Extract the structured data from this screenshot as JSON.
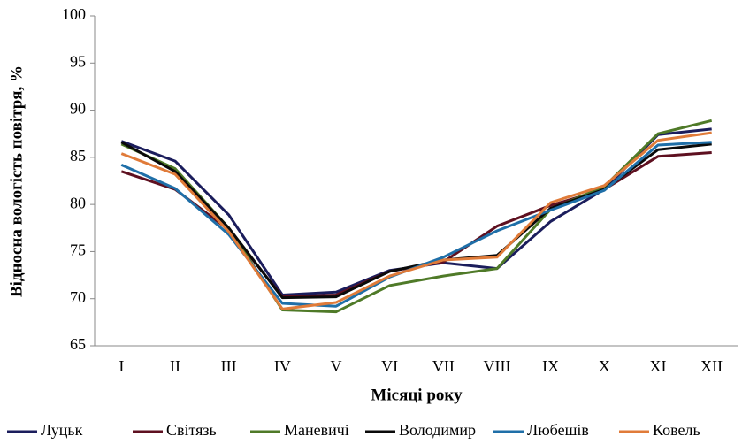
{
  "chart_data": {
    "type": "line",
    "x_label": "Місяці року",
    "y_label": "Відносна вологість повітря, %",
    "categories": [
      "I",
      "II",
      "III",
      "IV",
      "V",
      "VI",
      "VII",
      "VIII",
      "IX",
      "X",
      "XI",
      "XII"
    ],
    "series": [
      {
        "name": "Луцьк",
        "color": "#1b1d5c",
        "values": [
          86.7,
          84.6,
          78.9,
          70.4,
          70.7,
          73.0,
          73.8,
          73.2,
          78.2,
          81.6,
          87.4,
          88.0
        ]
      },
      {
        "name": "Світязь",
        "color": "#5e1020",
        "values": [
          83.5,
          81.6,
          77.3,
          70.2,
          70.4,
          72.9,
          73.9,
          77.7,
          79.9,
          81.6,
          85.1,
          85.5
        ]
      },
      {
        "name": "Маневичі",
        "color": "#4f7a28",
        "values": [
          86.4,
          83.8,
          77.5,
          68.8,
          68.6,
          71.4,
          72.4,
          73.2,
          79.5,
          81.9,
          87.5,
          88.9
        ]
      },
      {
        "name": "Володимир",
        "color": "#0a0a0a",
        "values": [
          86.6,
          83.5,
          77.5,
          70.1,
          70.2,
          72.9,
          74.1,
          74.6,
          79.6,
          81.6,
          85.8,
          86.4
        ]
      },
      {
        "name": "Любешів",
        "color": "#1f6fa8",
        "values": [
          84.2,
          81.7,
          76.8,
          69.5,
          69.2,
          72.3,
          74.4,
          77.2,
          79.4,
          81.5,
          86.3,
          86.6
        ]
      },
      {
        "name": "Ковель",
        "color": "#e07b39",
        "values": [
          85.4,
          83.2,
          77.1,
          68.9,
          69.6,
          72.4,
          74.1,
          74.4,
          80.2,
          82.0,
          86.8,
          87.6
        ]
      }
    ],
    "ylim": [
      65,
      100
    ],
    "yticks": [
      65,
      70,
      75,
      80,
      85,
      90,
      95,
      100
    ],
    "grid": false,
    "legend": "bottom"
  }
}
